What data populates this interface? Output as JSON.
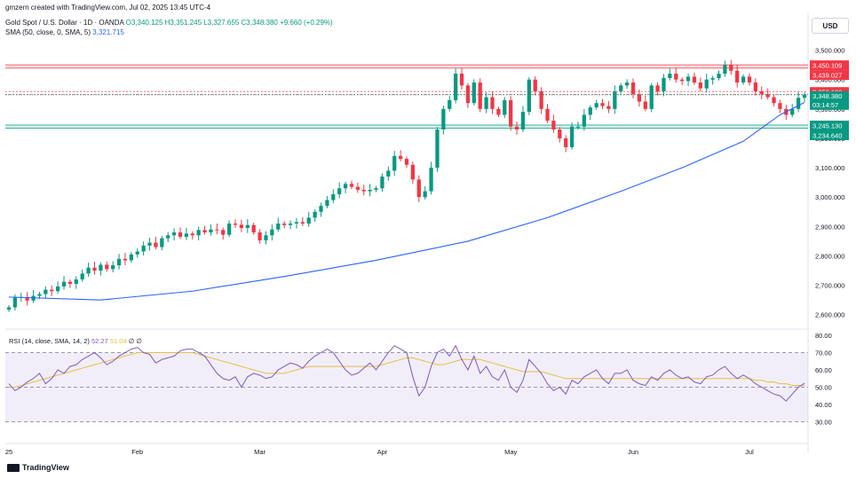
{
  "header": {
    "credit": "gmzern created with TradingView.com, Jul 02, 2025 13:45 UTC-4",
    "symbol": "Gold Spot / U.S. Dollar · 1D · OANDA",
    "ohlc": "O3,340.125 H3,351.245 L3,327.655 C3,348.380 +9.660 (+0.29%)",
    "sma_label": "SMA (50, close, 0, SMA, 5)",
    "sma_value": "3,321.715"
  },
  "currency": "USD",
  "rsi_header": {
    "label": "RSI (14, close, SMA, 14, 2)",
    "rsi_value": "52.27",
    "rsi_ma_value": "51.04",
    "extra": "∅ ∅"
  },
  "branding": "TradingView",
  "colors": {
    "up": "#089981",
    "down": "#f23645",
    "sma": "#2962ff",
    "rsi": "#7e57c2",
    "rsi_ma": "#e1c047",
    "resistance": "#f23645",
    "support": "#089981"
  },
  "chart_data": {
    "type": "candlestick",
    "price_axis": {
      "range": [
        2560,
        3550
      ],
      "ticks": [
        "3,500.000",
        "3,400.000",
        "3,300.000",
        "3,200.000",
        "3,100.000",
        "3,000.000",
        "2,900.000",
        "2,800.000",
        "2,700.000",
        "2,600.000"
      ]
    },
    "time_axis": {
      "labels": [
        "25",
        "Feb",
        "Mar",
        "Apr",
        "May",
        "Jun",
        "Jul"
      ]
    },
    "last_price": "3,348.380",
    "countdown": "03:14:57",
    "sma_value": "3,321.715",
    "levels": [
      {
        "value": 3450.109,
        "label": "3,450.109",
        "kind": "resistance"
      },
      {
        "value": 3439.027,
        "label": "3,439.027",
        "kind": "resistance"
      },
      {
        "value": 3359.186,
        "label": "3,359.186",
        "kind": "resistance"
      },
      {
        "value": 3349.077,
        "label": "3,349.077",
        "kind": "resistance"
      },
      {
        "value": 3245.13,
        "label": "3,245.130",
        "kind": "support"
      },
      {
        "value": 3234.64,
        "label": "3,234.640",
        "kind": "support"
      }
    ],
    "closes": [
      2625,
      2658,
      2660,
      2648,
      2664,
      2670,
      2685,
      2680,
      2696,
      2712,
      2705,
      2720,
      2740,
      2760,
      2750,
      2770,
      2755,
      2768,
      2790,
      2785,
      2805,
      2815,
      2835,
      2845,
      2830,
      2860,
      2870,
      2880,
      2865,
      2876,
      2870,
      2888,
      2880,
      2890,
      2888,
      2872,
      2910,
      2906,
      2895,
      2905,
      2880,
      2853,
      2870,
      2890,
      2910,
      2905,
      2910,
      2915,
      2910,
      2930,
      2950,
      2970,
      2990,
      3010,
      3030,
      3045,
      3035,
      3025,
      3020,
      3025,
      3030,
      3070,
      3090,
      3140,
      3130,
      3110,
      3060,
      3000,
      3020,
      3100,
      3230,
      3300,
      3330,
      3420,
      3380,
      3320,
      3390,
      3300,
      3340,
      3300,
      3280,
      3330,
      3240,
      3230,
      3290,
      3400,
      3360,
      3300,
      3260,
      3230,
      3200,
      3170,
      3240,
      3240,
      3280,
      3305,
      3320,
      3310,
      3300,
      3360,
      3380,
      3390,
      3350,
      3325,
      3300,
      3380,
      3360,
      3405,
      3420,
      3400,
      3395,
      3410,
      3390,
      3370,
      3400,
      3405,
      3420,
      3450,
      3430,
      3390,
      3410,
      3390,
      3360,
      3350,
      3340,
      3320,
      3300,
      3280,
      3300,
      3338,
      3348.38
    ],
    "sma": [
      {
        "x": 0,
        "y": 2660
      },
      {
        "x": 15,
        "y": 2650
      },
      {
        "x": 30,
        "y": 2680
      },
      {
        "x": 45,
        "y": 2730
      },
      {
        "x": 60,
        "y": 2785
      },
      {
        "x": 75,
        "y": 2850
      },
      {
        "x": 88,
        "y": 2930
      },
      {
        "x": 100,
        "y": 3020
      },
      {
        "x": 110,
        "y": 3100
      },
      {
        "x": 120,
        "y": 3190
      },
      {
        "x": 126,
        "y": 3280
      },
      {
        "x": 130,
        "y": 3322
      }
    ],
    "rsi": {
      "range": [
        20,
        80
      ],
      "ticks": [
        "80.00",
        "70.00",
        "60.00",
        "50.00",
        "40.00",
        "30.00"
      ],
      "bands": [
        30,
        50,
        70
      ],
      "values": [
        52,
        48,
        50,
        53,
        55,
        58,
        52,
        55,
        60,
        58,
        62,
        63,
        66,
        68,
        70,
        67,
        63,
        65,
        68,
        70,
        72,
        73,
        70,
        69,
        64,
        66,
        67,
        68,
        71,
        72,
        72,
        70,
        68,
        63,
        58,
        55,
        54,
        56,
        50,
        56,
        58,
        57,
        55,
        56,
        60,
        62,
        64,
        63,
        61,
        65,
        68,
        70,
        72,
        70,
        65,
        60,
        57,
        58,
        61,
        64,
        60,
        65,
        70,
        74,
        72,
        70,
        56,
        45,
        50,
        62,
        70,
        72,
        68,
        74,
        66,
        60,
        68,
        58,
        62,
        56,
        54,
        60,
        50,
        47,
        54,
        66,
        62,
        58,
        52,
        48,
        50,
        46,
        54,
        52,
        56,
        58,
        60,
        55,
        52,
        58,
        58,
        60,
        54,
        52,
        51,
        56,
        54,
        58,
        60,
        57,
        55,
        56,
        53,
        52,
        56,
        57,
        60,
        62,
        58,
        55,
        57,
        55,
        52,
        50,
        48,
        46,
        45,
        42,
        46,
        50,
        52.27
      ],
      "ma": [
        50,
        50,
        51,
        52,
        53,
        54,
        55,
        56,
        57,
        58,
        59,
        60,
        61,
        62,
        63,
        64,
        65,
        66,
        67,
        68,
        69,
        70,
        70,
        70,
        70,
        70,
        70,
        70,
        70,
        70,
        70,
        69,
        68,
        67,
        66,
        65,
        64,
        63,
        62,
        61,
        60,
        59,
        58,
        58,
        58,
        58,
        59,
        60,
        61,
        62,
        62,
        62,
        62,
        62,
        62,
        62,
        62,
        62,
        62,
        62,
        62,
        63,
        64,
        65,
        66,
        67,
        67,
        66,
        65,
        64,
        63,
        63,
        64,
        65,
        66,
        66,
        66,
        66,
        65,
        64,
        63,
        62,
        61,
        60,
        59,
        59,
        59,
        59,
        58,
        57,
        56,
        55,
        55,
        55,
        55,
        55,
        55,
        55,
        55,
        55,
        55,
        55,
        55,
        55,
        55,
        55,
        55,
        55,
        55,
        55,
        55,
        55,
        55,
        55,
        55,
        55,
        55,
        55,
        55,
        55,
        55,
        55,
        54,
        54,
        53,
        53,
        52,
        52,
        51,
        51,
        51.04
      ]
    }
  }
}
